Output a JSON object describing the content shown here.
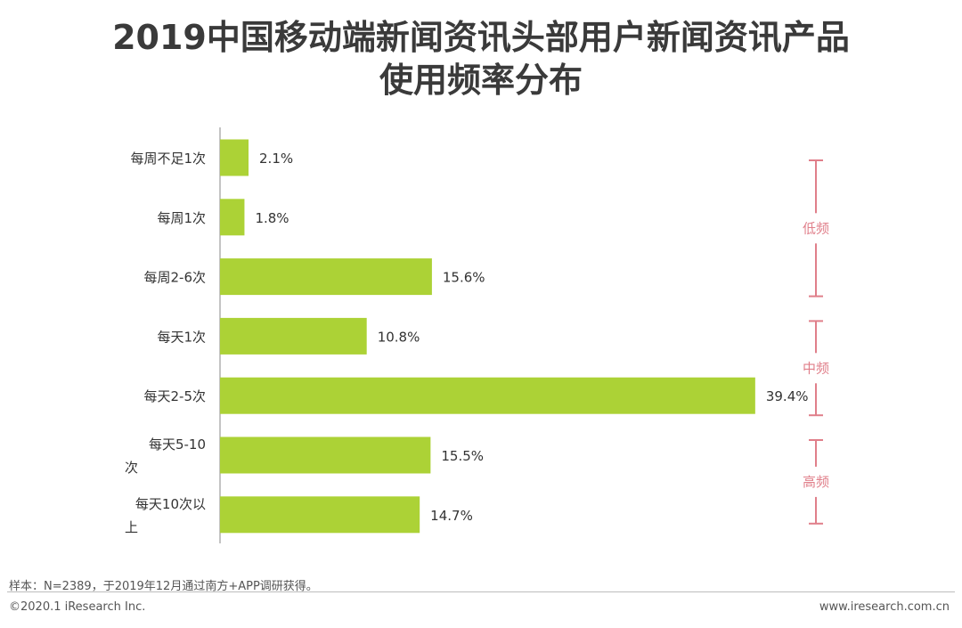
{
  "title": {
    "line1": "2019中国移动端新闻资讯头部用户新闻资讯产品",
    "line2": "使用频率分布"
  },
  "chart_data": {
    "type": "bar",
    "orientation": "horizontal",
    "categories": [
      "每周不足1次",
      "每周1次",
      "每周2-6次",
      "每天1次",
      "每天2-5次",
      "每天5-10次",
      "每天10次以上"
    ],
    "values": [
      2.1,
      1.8,
      15.6,
      10.8,
      39.4,
      15.5,
      14.7
    ],
    "value_labels": [
      "2.1%",
      "1.8%",
      "15.6%",
      "10.8%",
      "39.4%",
      "15.5%",
      "14.7%"
    ],
    "bar_color": "#acd236",
    "groups": [
      {
        "label": "低频",
        "from": 0,
        "to": 2
      },
      {
        "label": "中频",
        "from": 3,
        "to": 4
      },
      {
        "label": "高频",
        "from": 5,
        "to": 6
      }
    ],
    "group_color": "#e07f8a",
    "xlim": [
      0,
      40
    ]
  },
  "footer": {
    "note": "样本：N=2389，于2019年12月通过南方+APP调研获得。",
    "copyright": "©2020.1 iResearch Inc.",
    "site": "www.iresearch.com.cn"
  }
}
